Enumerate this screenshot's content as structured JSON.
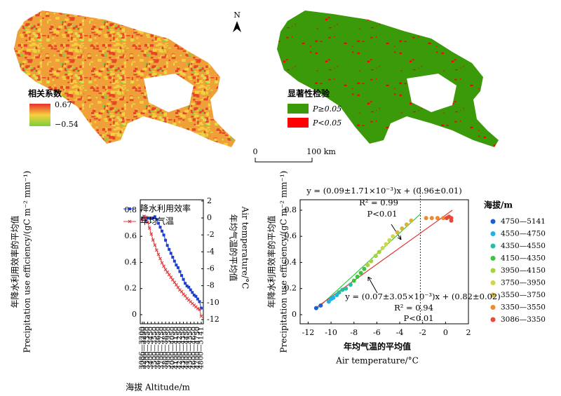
{
  "maps": {
    "north": "N",
    "left": {
      "legend_title": "相关系数",
      "max_label": "0.67",
      "min_label": "−0.54"
    },
    "right": {
      "legend_title": "显著性检验",
      "classes": [
        {
          "label": "P≥0.05",
          "color": "#3a9a0a"
        },
        {
          "label": "P<0.05",
          "color": "#ff0000"
        }
      ]
    },
    "scale": {
      "start": "0",
      "end": "100 km"
    }
  },
  "chart_data": [
    {
      "type": "line",
      "x_label": "海拔 Altitude/m",
      "y_label": [
        "年降水利用效率的平均值",
        "Precipitation use efficiency/(gC m⁻² mm⁻¹)"
      ],
      "y2_label": [
        "年均气温的平均值",
        "Air temperature/°C"
      ],
      "categories": [
        "3086—3200",
        "3200—3250",
        null,
        "3300—3350",
        null,
        "3400—3450",
        null,
        "3500—3550",
        null,
        "3600—3650",
        null,
        "3700—3750",
        null,
        "3800—3850",
        null,
        "3900—3950",
        null,
        "4000—4050",
        null,
        "4100—4150",
        null,
        "4200—4250",
        null,
        "4300—4350",
        null,
        "4400—4450",
        null,
        "4500—4550",
        null,
        "4600—4650",
        null,
        "4700—4750",
        null,
        "4800—5141"
      ],
      "ylim": [
        -0.07,
        0.88
      ],
      "yticks": [
        0,
        0.2,
        0.4,
        0.6,
        0.8
      ],
      "y2lim": [
        -12.5,
        2.15
      ],
      "y2ticks": [
        2,
        0,
        -2,
        -4,
        -6,
        -8,
        -10,
        -12
      ],
      "legend": "upper right",
      "series": [
        {
          "name": "降水利用效率",
          "color": "#1f3fd0",
          "marker": "square",
          "values": [
            0.74,
            0.75,
            0.72,
            0.74,
            0.74,
            0.74,
            0.74,
            0.75,
            0.73,
            0.7,
            0.67,
            0.64,
            0.61,
            0.57,
            0.53,
            0.5,
            0.47,
            0.44,
            0.41,
            0.38,
            0.36,
            0.33,
            0.3,
            0.27,
            0.24,
            0.22,
            0.21,
            0.19,
            0.17,
            0.15,
            0.14,
            0.12,
            0.1,
            0.05
          ]
        },
        {
          "name": "年均气温",
          "color": "#e03c3c",
          "marker": "cross",
          "axis": "y2",
          "values": [
            -0.2,
            0.2,
            0.1,
            -0.5,
            -1.2,
            -1.9,
            -2.6,
            -3.2,
            -3.8,
            -4.3,
            -4.8,
            -5.3,
            -5.7,
            -6.1,
            -6.4,
            -6.7,
            -7.0,
            -7.3,
            -7.6,
            -7.9,
            -8.2,
            -8.5,
            -8.7,
            -9.0,
            -9.2,
            -9.5,
            -9.7,
            -9.9,
            -10.1,
            -10.3,
            -10.5,
            -10.7,
            -10.8,
            -11.6
          ]
        }
      ]
    },
    {
      "type": "scatter",
      "x_label": [
        "年均气温的平均值",
        "Air temperature/°C"
      ],
      "y_label": [
        "年降水利用效率的平均值",
        "Precipitation use efficiency/(gC m⁻² mm⁻¹)"
      ],
      "xlim": [
        -12.7,
        2.0
      ],
      "xticks": [
        -12,
        -10,
        -8,
        -6,
        -4,
        -2,
        0,
        2
      ],
      "ylim": [
        -0.07,
        0.88
      ],
      "yticks": [
        0,
        0.2,
        0.4,
        0.6,
        0.8
      ],
      "legend_title": "海拔/m",
      "legend": "outside right",
      "series": [
        {
          "name": "4750—5141",
          "color": "#1a5fd6",
          "x": [
            -11.3,
            -10.9
          ],
          "values": [
            0.05,
            0.07
          ]
        },
        {
          "name": "4550—4750",
          "color": "#1fb4e0",
          "x": [
            -10.2,
            -10.0,
            -9.8,
            -9.5
          ],
          "values": [
            0.1,
            0.12,
            0.13,
            0.15
          ]
        },
        {
          "name": "4350—4550",
          "color": "#22c0a0",
          "x": [
            -9.3,
            -9.0,
            -8.7,
            -8.3
          ],
          "values": [
            0.17,
            0.19,
            0.2,
            0.23
          ]
        },
        {
          "name": "4150—4350",
          "color": "#3cc43c",
          "x": [
            -8.0,
            -7.7,
            -7.4,
            -7.1
          ],
          "values": [
            0.26,
            0.29,
            0.32,
            0.35
          ]
        },
        {
          "name": "3950—4150",
          "color": "#a6d23a",
          "x": [
            -6.8,
            -6.5,
            -6.1,
            -5.8
          ],
          "values": [
            0.38,
            0.41,
            0.45,
            0.48
          ]
        },
        {
          "name": "3750—3950",
          "color": "#cfd64a",
          "x": [
            -5.5,
            -5.2,
            -4.9,
            -4.6
          ],
          "values": [
            0.51,
            0.54,
            0.57,
            0.6
          ]
        },
        {
          "name": "3550—3750",
          "color": "#d6b43a",
          "x": [
            -4.2,
            -3.8,
            -3.4,
            -3.0
          ],
          "values": [
            0.63,
            0.66,
            0.69,
            0.72
          ]
        },
        {
          "name": "3350—3550",
          "color": "#f08a2a",
          "x": [
            -1.7,
            -1.2,
            -0.7,
            -0.2
          ],
          "values": [
            0.74,
            0.74,
            0.74,
            0.74
          ]
        },
        {
          "name": "3086—3350",
          "color": "#e84a3a",
          "x": [
            0.1,
            0.3,
            0.5,
            0.5
          ],
          "values": [
            0.74,
            0.75,
            0.72,
            0.74
          ]
        }
      ],
      "fit_lines": [
        {
          "color": "#2ecc40",
          "x": [
            -11.3,
            -2.2
          ],
          "values": [
            0.04,
            0.77
          ]
        },
        {
          "color": "#e03030",
          "x": [
            -11.2,
            0.6
          ],
          "values": [
            0.06,
            0.8
          ]
        }
      ],
      "reference_x": -2.2,
      "annotations": [
        "y = (0.09±1.71×10⁻³)x + (0.96±0.01)",
        "R² = 0.99",
        "P<0.01",
        "y = (0.07±3.05×10⁻³)x + (0.82±0.02)",
        "R² = 0.94",
        "P<0.01"
      ]
    }
  ]
}
